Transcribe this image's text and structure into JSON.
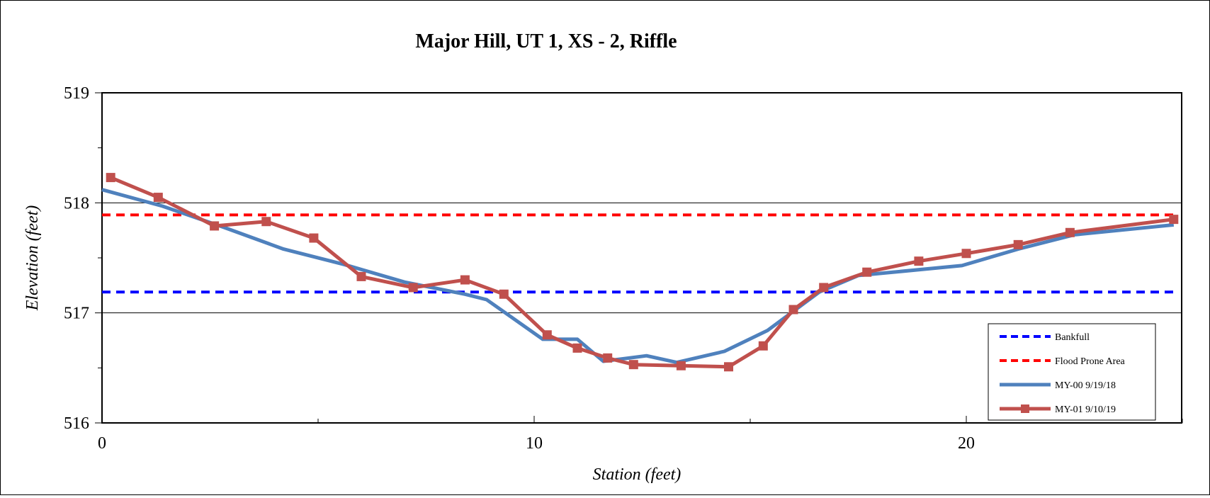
{
  "chart_data": {
    "type": "line",
    "title": "Major Hill, UT 1, XS - 2, Riffle",
    "xlabel": "Station (feet)",
    "ylabel": "Elevation (feet)",
    "xlim": [
      0,
      25
    ],
    "ylim": [
      516,
      519
    ],
    "x_ticks": [
      0,
      10,
      20
    ],
    "x_tick_labels": [
      "0",
      "10",
      "20"
    ],
    "y_ticks": [
      516,
      517,
      518,
      519
    ],
    "y_tick_labels": [
      "516",
      "517",
      "518",
      "519"
    ],
    "gridlines_y": [
      517,
      518
    ],
    "legend_position": "bottom-right",
    "series": [
      {
        "name": "Bankfull",
        "style": "dashed",
        "color": "#0000ff",
        "marker": "none",
        "x": [
          0,
          24.8
        ],
        "y": [
          517.19,
          517.19
        ]
      },
      {
        "name": "Flood Prone Area",
        "style": "dashed",
        "color": "#ff0000",
        "marker": "none",
        "x": [
          0,
          24.8
        ],
        "y": [
          517.89,
          517.89
        ]
      },
      {
        "name": "MY-00 9/19/18",
        "style": "solid",
        "color": "#4f81bd",
        "marker": "none",
        "x": [
          0,
          1.4,
          2.8,
          4.2,
          5.6,
          7.0,
          8.4,
          8.9,
          10.2,
          11.0,
          11.6,
          12.6,
          13.3,
          14.4,
          15.4,
          16.6,
          17.5,
          19.9,
          21.2,
          22.5,
          24.8
        ],
        "y": [
          518.12,
          517.97,
          517.78,
          517.58,
          517.44,
          517.28,
          517.17,
          517.12,
          516.76,
          516.76,
          516.56,
          516.61,
          516.55,
          516.65,
          516.84,
          517.19,
          517.34,
          517.43,
          517.58,
          517.71,
          517.8
        ]
      },
      {
        "name": "MY-01 9/10/19",
        "style": "solid",
        "color": "#c0504d",
        "marker": "square",
        "x": [
          0.2,
          1.3,
          2.6,
          3.8,
          4.9,
          6.0,
          7.2,
          8.4,
          9.3,
          10.3,
          11.0,
          11.7,
          12.3,
          13.4,
          14.5,
          15.3,
          16.0,
          16.7,
          17.7,
          18.9,
          20.0,
          21.2,
          22.4,
          24.8
        ],
        "y": [
          518.23,
          518.05,
          517.79,
          517.83,
          517.68,
          517.33,
          517.23,
          517.3,
          517.17,
          516.8,
          516.68,
          516.59,
          516.53,
          516.52,
          516.51,
          516.7,
          517.03,
          517.23,
          517.37,
          517.47,
          517.54,
          517.62,
          517.73,
          517.85
        ]
      }
    ]
  }
}
